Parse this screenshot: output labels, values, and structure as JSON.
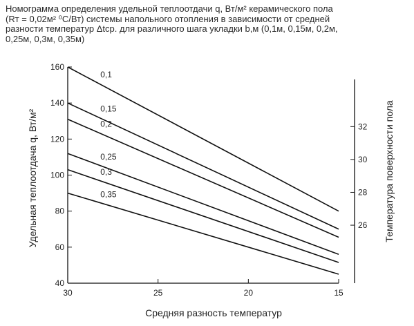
{
  "caption": {
    "line1": "Номограмма определения удельной теплоотдачи  q, Вт/м² керамического пола",
    "line2": "(Rт = 0,02м² ⁰С/Вт) системы напольного отопления в зависимости от средней",
    "line3": "разности температур  Δtср. для различного шага укладки  b,м (0,1м, 0,15м, 0,2м,",
    "line4": "0,25м, 0,3м, 0,35м)"
  },
  "chart_data": {
    "type": "line",
    "xlabel": "Средняя разность температур",
    "ylabel": "Удельная теплоотдача q, Вт/м²",
    "y2label": "Температура поверхности пола",
    "xlim": [
      30,
      15
    ],
    "xticks": [
      30,
      25,
      20,
      15
    ],
    "ylim": [
      40,
      160
    ],
    "yticks": [
      40,
      60,
      80,
      100,
      120,
      140,
      160
    ],
    "y2lim": [
      22.47,
      35.63
    ],
    "y2ticks": [
      26,
      28,
      30,
      32
    ],
    "grid": false,
    "series": [
      {
        "name": "0,1",
        "x": [
          30,
          15
        ],
        "y": [
          160,
          80
        ]
      },
      {
        "name": "0,15",
        "x": [
          30,
          15
        ],
        "y": [
          140,
          70
        ]
      },
      {
        "name": "0,2",
        "x": [
          30,
          15
        ],
        "y": [
          131,
          65.5
        ]
      },
      {
        "name": "0,25",
        "x": [
          30,
          15
        ],
        "y": [
          112,
          56
        ]
      },
      {
        "name": "0,3",
        "x": [
          30,
          15
        ],
        "y": [
          103,
          51.5
        ]
      },
      {
        "name": "0,35",
        "x": [
          30,
          15
        ],
        "y": [
          90,
          45
        ]
      }
    ]
  }
}
